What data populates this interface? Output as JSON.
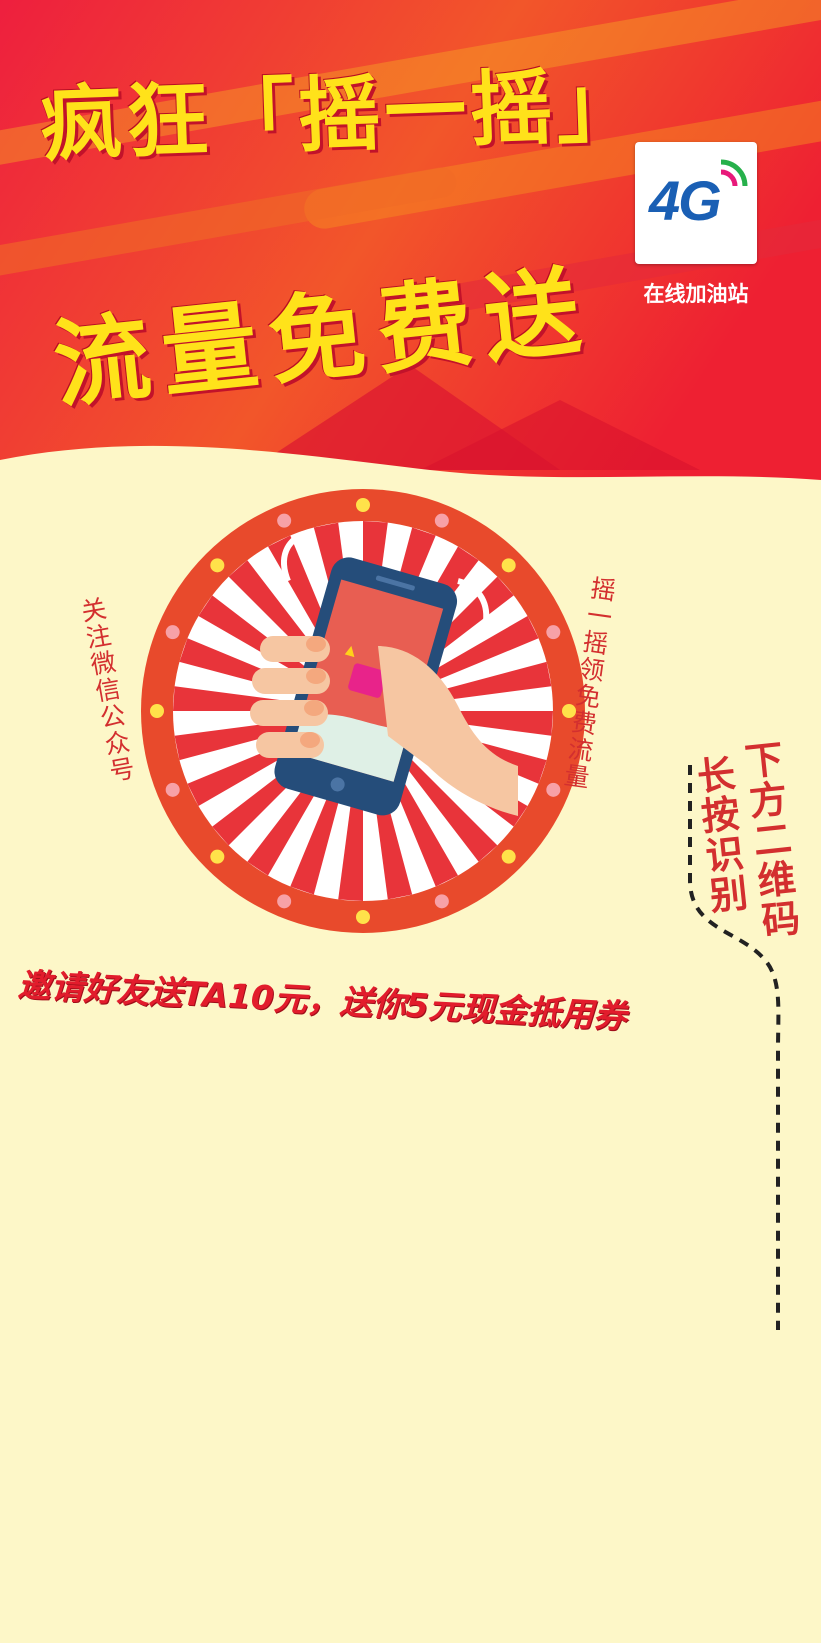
{
  "banner": {
    "title_line1": "疯狂「摇一摇」",
    "title_line2": "流量免费送",
    "logo_text": "4G",
    "logo_caption": "在线加油站",
    "colors": {
      "red": "#e9193a",
      "orange": "#f46a1c",
      "yellow": "#ffe21a"
    }
  },
  "wheel": {
    "left_text": "关注微信公众号",
    "right_text": "摇一摇领免费流量",
    "icon": "hand-shaking-phone-icon"
  },
  "qr_hint": {
    "line1": "长按识别",
    "line2": "下方二维码"
  },
  "invite_text": "邀请好友送TA10元，送你5元现金抵用券",
  "page_background": "#fdf7c8"
}
